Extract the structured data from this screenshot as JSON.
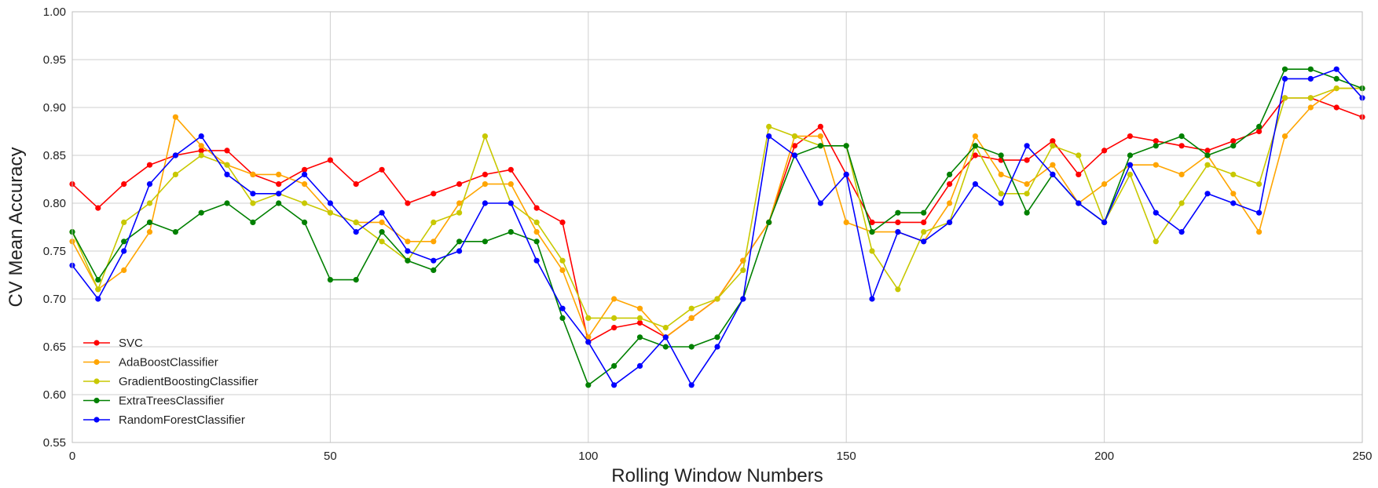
{
  "chart_data": {
    "type": "line",
    "title": "",
    "xlabel": "Rolling Window Numbers",
    "ylabel": "CV Mean Accuracy",
    "xlim": [
      0,
      250
    ],
    "ylim": [
      0.55,
      1.0
    ],
    "xticks": [
      0,
      50,
      100,
      150,
      200,
      250
    ],
    "yticks": [
      "0.55",
      "0.60",
      "0.65",
      "0.70",
      "0.75",
      "0.80",
      "0.85",
      "0.90",
      "0.95",
      "1.00"
    ],
    "grid": true,
    "legend_position": "lower-left",
    "x": [
      0,
      5,
      10,
      15,
      20,
      25,
      30,
      35,
      40,
      45,
      50,
      55,
      60,
      65,
      70,
      75,
      80,
      85,
      90,
      95,
      100,
      105,
      110,
      115,
      120,
      125,
      130,
      135,
      140,
      145,
      150,
      155,
      160,
      165,
      170,
      175,
      180,
      185,
      190,
      195,
      200,
      205,
      210,
      215,
      220,
      225,
      230,
      235,
      240,
      245,
      250
    ],
    "series": [
      {
        "name": "SVC",
        "color": "#ff0000",
        "values": [
          0.82,
          0.795,
          0.82,
          0.84,
          0.85,
          0.855,
          0.855,
          0.83,
          0.82,
          0.835,
          0.845,
          0.82,
          0.835,
          0.8,
          0.81,
          0.82,
          0.83,
          0.835,
          0.795,
          0.78,
          0.655,
          0.67,
          0.675,
          0.66,
          0.68,
          0.7,
          0.74,
          0.78,
          0.86,
          0.88,
          0.83,
          0.78,
          0.78,
          0.78,
          0.82,
          0.85,
          0.845,
          0.845,
          0.865,
          0.83,
          0.855,
          0.87,
          0.865,
          0.86,
          0.855,
          0.865,
          0.875,
          0.91,
          0.91,
          0.9,
          0.89
        ]
      },
      {
        "name": "AdaBoostClassifier",
        "color": "#ffa500",
        "values": [
          0.76,
          0.71,
          0.73,
          0.77,
          0.89,
          0.86,
          0.84,
          0.83,
          0.83,
          0.82,
          0.79,
          0.78,
          0.78,
          0.76,
          0.76,
          0.8,
          0.82,
          0.82,
          0.77,
          0.73,
          0.66,
          0.7,
          0.69,
          0.66,
          0.68,
          0.7,
          0.74,
          0.78,
          0.87,
          0.87,
          0.78,
          0.77,
          0.77,
          0.76,
          0.8,
          0.87,
          0.83,
          0.82,
          0.84,
          0.8,
          0.82,
          0.84,
          0.84,
          0.83,
          0.85,
          0.81,
          0.77,
          0.87,
          0.9,
          0.92,
          0.92
        ]
      },
      {
        "name": "GradientBoostingClassifier",
        "color": "#c8c800",
        "values": [
          0.77,
          0.71,
          0.78,
          0.8,
          0.83,
          0.85,
          0.84,
          0.8,
          0.81,
          0.8,
          0.79,
          0.78,
          0.76,
          0.74,
          0.78,
          0.79,
          0.87,
          0.8,
          0.78,
          0.74,
          0.68,
          0.68,
          0.68,
          0.67,
          0.69,
          0.7,
          0.73,
          0.88,
          0.87,
          0.86,
          0.86,
          0.75,
          0.71,
          0.77,
          0.78,
          0.86,
          0.81,
          0.81,
          0.86,
          0.85,
          0.78,
          0.83,
          0.76,
          0.8,
          0.84,
          0.83,
          0.82,
          0.91,
          0.91,
          0.92,
          0.92
        ]
      },
      {
        "name": "ExtraTreesClassifier",
        "color": "#008000",
        "values": [
          0.77,
          0.72,
          0.76,
          0.78,
          0.77,
          0.79,
          0.8,
          0.78,
          0.8,
          0.78,
          0.72,
          0.72,
          0.77,
          0.74,
          0.73,
          0.76,
          0.76,
          0.77,
          0.76,
          0.68,
          0.61,
          0.63,
          0.66,
          0.65,
          0.65,
          0.66,
          0.7,
          0.78,
          0.85,
          0.86,
          0.86,
          0.77,
          0.79,
          0.79,
          0.83,
          0.86,
          0.85,
          0.79,
          0.83,
          0.8,
          0.78,
          0.85,
          0.86,
          0.87,
          0.85,
          0.86,
          0.88,
          0.94,
          0.94,
          0.93,
          0.92
        ]
      },
      {
        "name": "RandomForestClassifier",
        "color": "#0000ff",
        "values": [
          0.735,
          0.7,
          0.75,
          0.82,
          0.85,
          0.87,
          0.83,
          0.81,
          0.81,
          0.83,
          0.8,
          0.77,
          0.79,
          0.75,
          0.74,
          0.75,
          0.8,
          0.8,
          0.74,
          0.69,
          0.655,
          0.61,
          0.63,
          0.66,
          0.61,
          0.65,
          0.7,
          0.87,
          0.85,
          0.8,
          0.83,
          0.7,
          0.77,
          0.76,
          0.78,
          0.82,
          0.8,
          0.86,
          0.83,
          0.8,
          0.78,
          0.84,
          0.79,
          0.77,
          0.81,
          0.8,
          0.79,
          0.93,
          0.93,
          0.94,
          0.91
        ]
      }
    ]
  }
}
